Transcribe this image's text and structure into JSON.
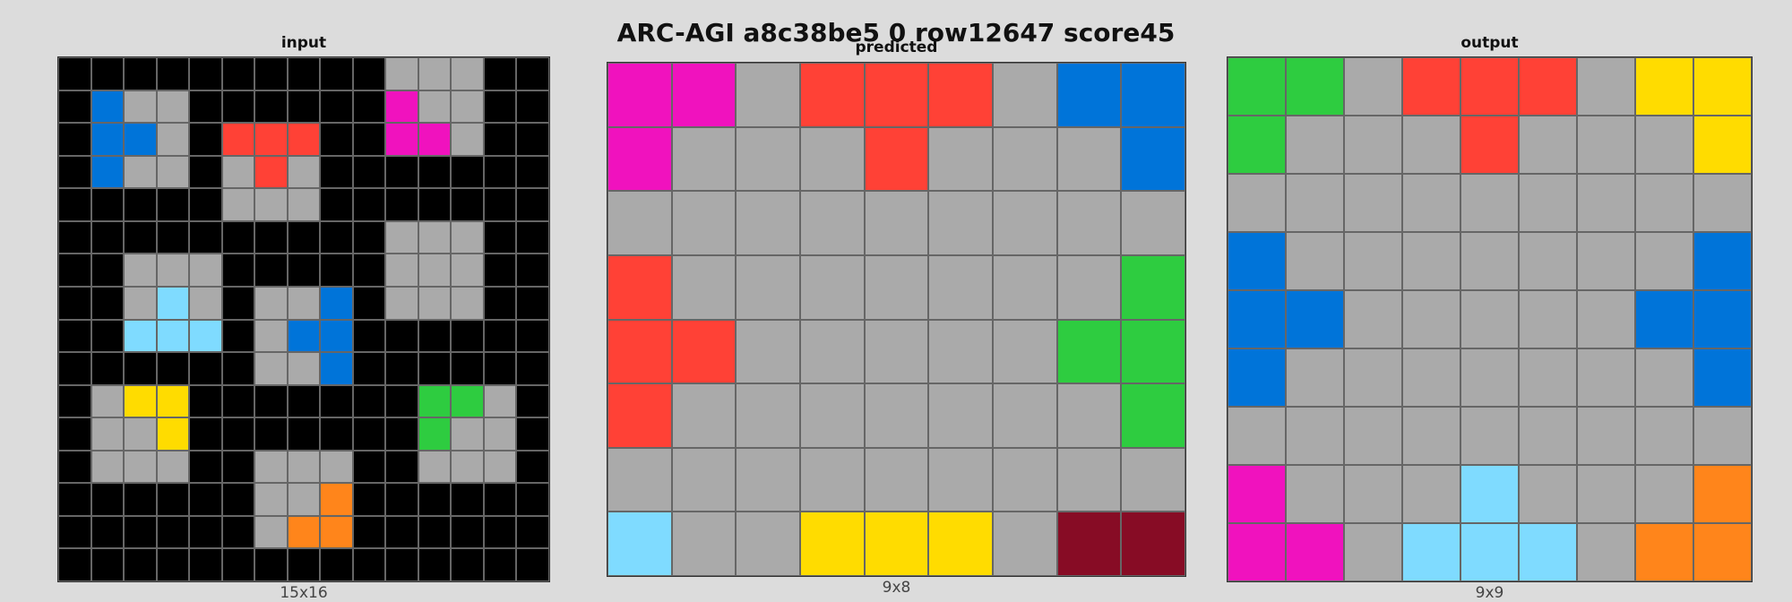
{
  "title": "ARC-AGI a8c38be5 0 row12647 score45",
  "palette": {
    "0": "#000000",
    "1": "#0074d9",
    "2": "#ff4136",
    "3": "#2ecc40",
    "4": "#ffdc00",
    "5": "#aaaaaa",
    "6": "#f012be",
    "7": "#ff851b",
    "8": "#7fdbff",
    "9": "#870c25"
  },
  "panels": [
    {
      "id": "input",
      "label": "input",
      "dims": "15x16",
      "rows": [
        [
          0,
          0,
          0,
          0,
          0,
          0,
          0,
          0,
          0,
          0,
          5,
          5,
          5,
          0,
          0
        ],
        [
          0,
          1,
          5,
          5,
          0,
          0,
          0,
          0,
          0,
          0,
          6,
          5,
          5,
          0,
          0
        ],
        [
          0,
          1,
          1,
          5,
          0,
          2,
          2,
          2,
          0,
          0,
          6,
          6,
          5,
          0,
          0
        ],
        [
          0,
          1,
          5,
          5,
          0,
          5,
          2,
          5,
          0,
          0,
          0,
          0,
          0,
          0,
          0
        ],
        [
          0,
          0,
          0,
          0,
          0,
          5,
          5,
          5,
          0,
          0,
          0,
          0,
          0,
          0,
          0
        ],
        [
          0,
          0,
          0,
          0,
          0,
          0,
          0,
          0,
          0,
          0,
          5,
          5,
          5,
          0,
          0
        ],
        [
          0,
          0,
          5,
          5,
          5,
          0,
          0,
          0,
          0,
          0,
          5,
          5,
          5,
          0,
          0
        ],
        [
          0,
          0,
          5,
          8,
          5,
          0,
          5,
          5,
          1,
          0,
          5,
          5,
          5,
          0,
          0
        ],
        [
          0,
          0,
          8,
          8,
          8,
          0,
          5,
          1,
          1,
          0,
          0,
          0,
          0,
          0,
          0
        ],
        [
          0,
          0,
          0,
          0,
          0,
          0,
          5,
          5,
          1,
          0,
          0,
          0,
          0,
          0,
          0
        ],
        [
          0,
          5,
          4,
          4,
          0,
          0,
          0,
          0,
          0,
          0,
          0,
          3,
          3,
          5,
          0
        ],
        [
          0,
          5,
          5,
          4,
          0,
          0,
          0,
          0,
          0,
          0,
          0,
          3,
          5,
          5,
          0
        ],
        [
          0,
          5,
          5,
          5,
          0,
          0,
          5,
          5,
          5,
          0,
          0,
          5,
          5,
          5,
          0
        ],
        [
          0,
          0,
          0,
          0,
          0,
          0,
          5,
          5,
          7,
          0,
          0,
          0,
          0,
          0,
          0
        ],
        [
          0,
          0,
          0,
          0,
          0,
          0,
          5,
          7,
          7,
          0,
          0,
          0,
          0,
          0,
          0
        ],
        [
          0,
          0,
          0,
          0,
          0,
          0,
          0,
          0,
          0,
          0,
          0,
          0,
          0,
          0,
          0
        ]
      ]
    },
    {
      "id": "predicted",
      "label": "predicted",
      "dims": "9x8",
      "rows": [
        [
          6,
          6,
          5,
          2,
          2,
          2,
          5,
          1,
          1
        ],
        [
          6,
          5,
          5,
          5,
          2,
          5,
          5,
          5,
          1
        ],
        [
          5,
          5,
          5,
          5,
          5,
          5,
          5,
          5,
          5
        ],
        [
          2,
          5,
          5,
          5,
          5,
          5,
          5,
          5,
          3
        ],
        [
          2,
          2,
          5,
          5,
          5,
          5,
          5,
          3,
          3
        ],
        [
          2,
          5,
          5,
          5,
          5,
          5,
          5,
          5,
          3
        ],
        [
          5,
          5,
          5,
          5,
          5,
          5,
          5,
          5,
          5
        ],
        [
          8,
          5,
          5,
          4,
          4,
          4,
          5,
          9,
          9
        ]
      ]
    },
    {
      "id": "output",
      "label": "output",
      "dims": "9x9",
      "rows": [
        [
          3,
          3,
          5,
          2,
          2,
          2,
          5,
          4,
          4
        ],
        [
          3,
          5,
          5,
          5,
          2,
          5,
          5,
          5,
          4
        ],
        [
          5,
          5,
          5,
          5,
          5,
          5,
          5,
          5,
          5
        ],
        [
          1,
          5,
          5,
          5,
          5,
          5,
          5,
          5,
          1
        ],
        [
          1,
          1,
          5,
          5,
          5,
          5,
          5,
          1,
          1
        ],
        [
          1,
          5,
          5,
          5,
          5,
          5,
          5,
          5,
          1
        ],
        [
          5,
          5,
          5,
          5,
          5,
          5,
          5,
          5,
          5
        ],
        [
          6,
          5,
          5,
          5,
          8,
          5,
          5,
          5,
          7
        ],
        [
          6,
          6,
          5,
          8,
          8,
          8,
          5,
          7,
          7
        ]
      ]
    }
  ]
}
